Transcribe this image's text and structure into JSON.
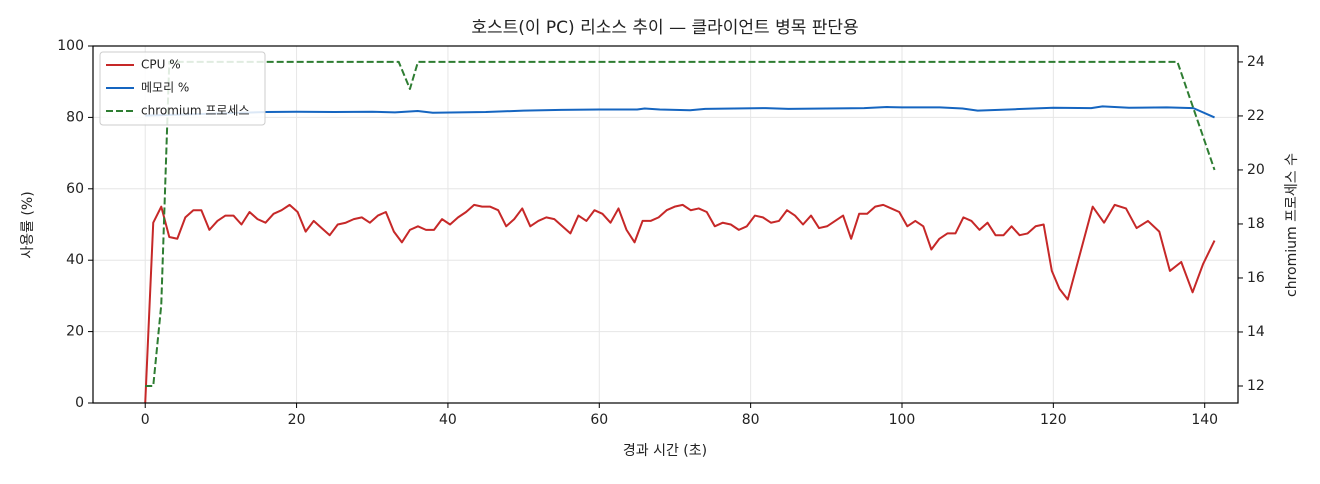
{
  "chart_data": {
    "type": "line",
    "title": "호스트(이 PC) 리소스 추이 — 클라이언트 병목 판단용",
    "xlabel": "경과 시간 (초)",
    "ylabel": "사용률 (%)",
    "y2label": "chromium 프로세스 수",
    "xlim": [
      -6.9,
      144.4
    ],
    "xticks": [
      0,
      20,
      40,
      60,
      80,
      100,
      120,
      140
    ],
    "ylim": [
      0,
      100
    ],
    "yticks": [
      0,
      20,
      40,
      60,
      80,
      100
    ],
    "y2lim": [
      11.37,
      24.59
    ],
    "y2ticks": [
      12,
      14,
      16,
      18,
      20,
      22,
      24
    ],
    "grid": true,
    "legend": "upper left",
    "series": [
      {
        "name": "CPU %",
        "color": "#c62828",
        "linestyle": "solid",
        "x": [
          0,
          1.06,
          2.12,
          3.18,
          4.24,
          5.3,
          6.36,
          7.42,
          8.48,
          9.54,
          10.6,
          11.66,
          12.72,
          13.78,
          14.84,
          15.9,
          16.96,
          18.02,
          19.08,
          20.14,
          21.2,
          22.26,
          23.32,
          24.38,
          25.44,
          26.5,
          27.56,
          28.62,
          29.68,
          30.74,
          31.8,
          32.86,
          33.92,
          34.98,
          36.04,
          37.1,
          38.16,
          39.22,
          40.28,
          41.34,
          42.4,
          43.46,
          44.52,
          45.58,
          46.64,
          47.7,
          48.76,
          49.82,
          50.88,
          51.94,
          53,
          54.06,
          55.12,
          56.18,
          57.24,
          58.3,
          59.36,
          60.42,
          61.48,
          62.54,
          63.6,
          64.66,
          65.72,
          66.78,
          67.84,
          68.9,
          69.96,
          71.02,
          72.08,
          73.14,
          74.2,
          75.26,
          76.32,
          77.38,
          78.44,
          79.5,
          80.56,
          81.62,
          82.68,
          83.74,
          84.8,
          85.86,
          86.92,
          87.98,
          89.04,
          90.1,
          91.16,
          92.22,
          93.28,
          94.34,
          95.4,
          96.46,
          97.52,
          98.58,
          99.64,
          100.7,
          101.76,
          102.82,
          103.88,
          104.94,
          106,
          107.06,
          108.12,
          109.18,
          110.24,
          111.3,
          112.36,
          113.42,
          114.48,
          115.54,
          116.6,
          117.66,
          118.72,
          119.8,
          120.8,
          121.9,
          125.2,
          126.7,
          128.1,
          129.6,
          131,
          132.5,
          134,
          135.4,
          136.9,
          138.4,
          139.8,
          141.3
        ],
        "values": [
          0,
          50.5,
          55,
          46.5,
          46,
          52,
          54,
          54,
          48.5,
          51,
          52.5,
          52.5,
          50,
          53.5,
          51.5,
          50.5,
          53,
          54,
          55.5,
          53.5,
          48,
          51,
          49,
          47,
          50,
          50.5,
          51.5,
          52,
          50.5,
          52.5,
          53.5,
          48,
          45,
          48.5,
          49.5,
          48.5,
          48.5,
          51.5,
          50,
          52,
          53.5,
          55.5,
          55,
          55,
          54,
          49.5,
          51.5,
          54.5,
          49.5,
          51,
          52,
          51.5,
          49.5,
          47.5,
          52.5,
          51,
          54,
          53,
          50.5,
          54.5,
          48.5,
          45,
          51,
          51,
          52,
          54,
          55,
          55.5,
          54,
          54.5,
          53.5,
          49.5,
          50.5,
          50,
          48.5,
          49.5,
          52.5,
          52,
          50.5,
          51,
          54,
          52.5,
          50,
          52.5,
          49,
          49.5,
          51,
          52.5,
          46,
          53,
          53,
          55,
          55.5,
          54.5,
          53.5,
          49.5,
          51,
          49.5,
          43,
          46,
          47.5,
          47.5,
          52,
          51,
          48.5,
          50.5,
          47,
          47,
          49.5,
          47,
          47.5,
          49.5,
          50,
          37,
          32,
          29,
          55,
          50.5,
          55.5,
          54.5,
          49,
          51,
          48,
          37,
          39.5,
          31,
          39,
          45.5
        ]
      },
      {
        "name": "메모리 %",
        "color": "#1565c0",
        "linestyle": "solid",
        "x": [
          0,
          16,
          20,
          25,
          30,
          33,
          36,
          38,
          45,
          50,
          55,
          60,
          65,
          66,
          68,
          72,
          74,
          82,
          85,
          90,
          95,
          98,
          100,
          105,
          108,
          110,
          115,
          120,
          125,
          126.5,
          130,
          135,
          138.5,
          141.3
        ],
        "values": [
          80.5,
          81.5,
          81.6,
          81.5,
          81.6,
          81.4,
          81.8,
          81.3,
          81.5,
          81.9,
          82.1,
          82.2,
          82.2,
          82.5,
          82.2,
          82,
          82.4,
          82.6,
          82.4,
          82.5,
          82.6,
          82.9,
          82.8,
          82.8,
          82.5,
          81.9,
          82.3,
          82.7,
          82.6,
          83.1,
          82.7,
          82.8,
          82.6,
          80
        ]
      },
      {
        "name": "chromium 프로세스",
        "color": "#2e7d32",
        "linestyle": "dashed",
        "axis": "y2",
        "x": [
          0,
          1.06,
          2.12,
          3.18,
          33.5,
          34.98,
          36.04,
          136.4,
          141.3
        ],
        "values": [
          12,
          12,
          15,
          24,
          24,
          23,
          24,
          24,
          20
        ]
      }
    ]
  }
}
